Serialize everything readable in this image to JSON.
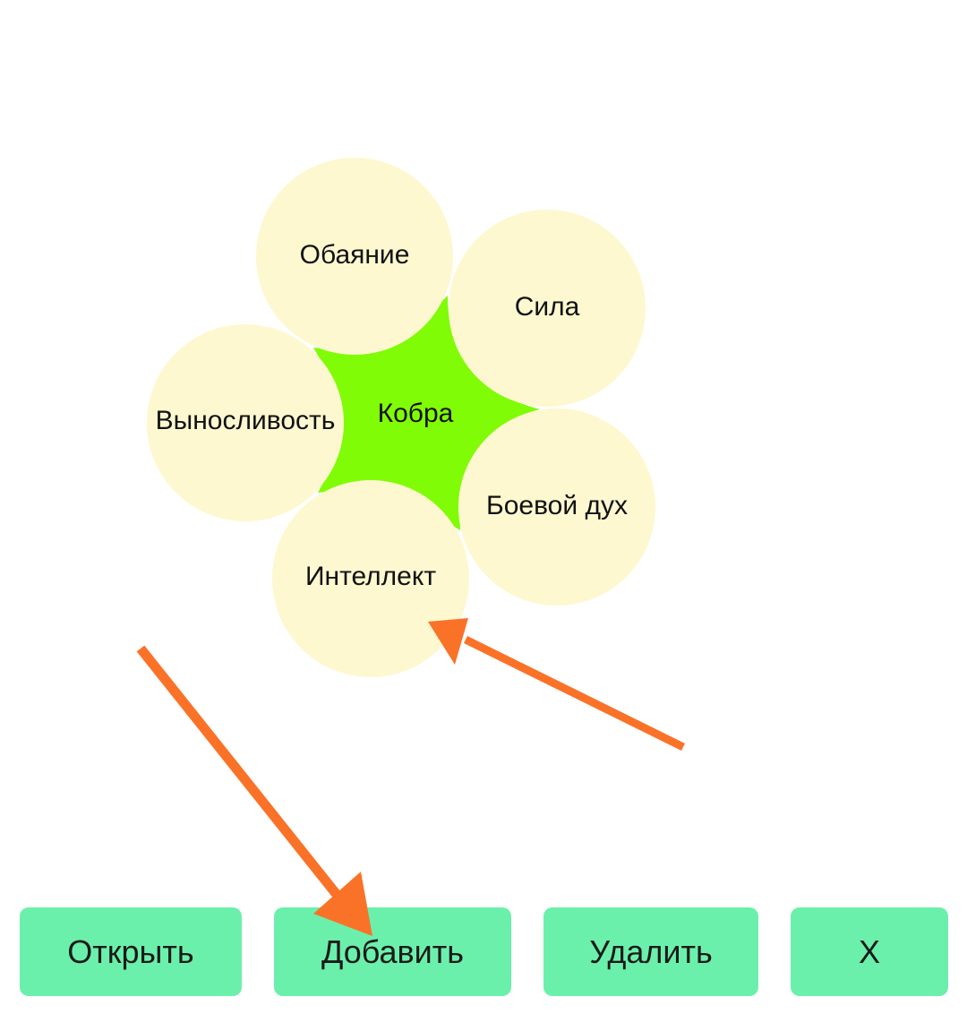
{
  "center": {
    "label": "Кобра"
  },
  "petals": [
    {
      "label": "Обаяние"
    },
    {
      "label": "Сила"
    },
    {
      "label": "Выносливость"
    },
    {
      "label": "Боевой дух"
    },
    {
      "label": "Интеллект"
    }
  ],
  "buttons": {
    "open": "Открыть",
    "add": "Добавить",
    "delete": "Удалить",
    "close": "X"
  },
  "colors": {
    "background": "#ffffff",
    "petal_fill": "#fdf8cf",
    "center_fill": "#80fc07",
    "button_fill": "#6bf0ab",
    "annotation_arrow": "#fa7228"
  }
}
